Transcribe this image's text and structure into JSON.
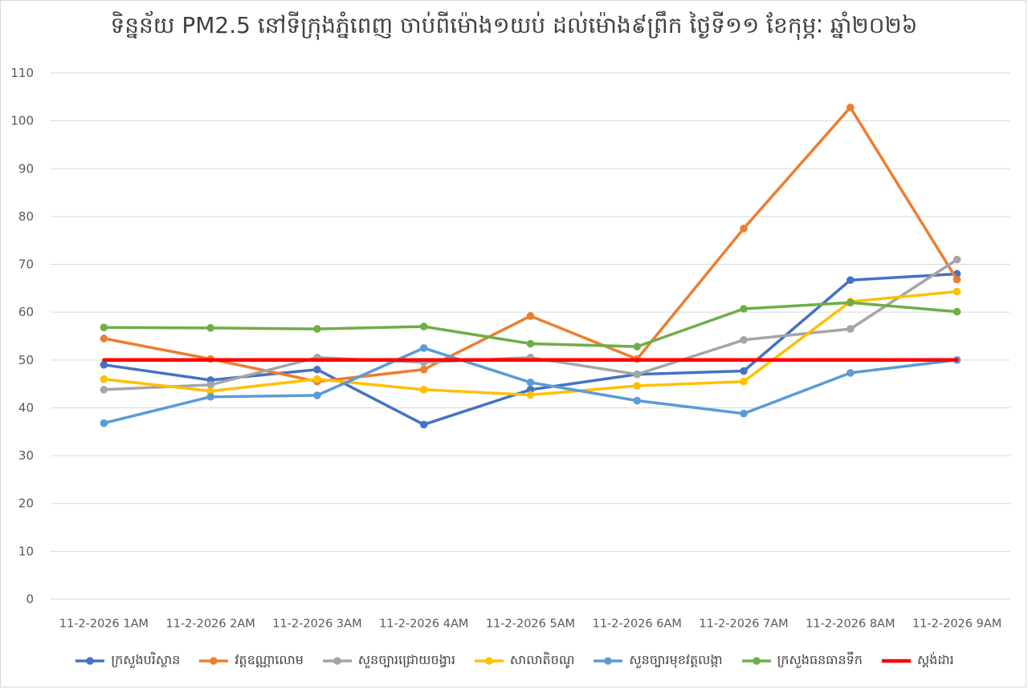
{
  "chart_data": {
    "type": "line",
    "title": "ទិន្នន័យ PM2.5 នៅទីក្រុងភ្នំពេញ ចាប់ពីម៉ោង១យប់ ដល់ម៉ោង៩ព្រឹក ថ្ងៃទី១១ ខែកុម្ភៈ ឆ្នាំ២០២៦",
    "xlabel": "",
    "ylabel": "",
    "ylim": [
      0,
      110
    ],
    "yticks": [
      "0",
      "10",
      "20",
      "30",
      "40",
      "50",
      "60",
      "70",
      "80",
      "90",
      "100",
      "110"
    ],
    "categories": [
      "11-2-2026 1AM",
      "11-2-2026 2AM",
      "11-2-2026 3AM",
      "11-2-2026 4AM",
      "11-2-2026 5AM",
      "11-2-2026 6AM",
      "11-2-2026 7AM",
      "11-2-2026 8AM",
      "11-2-2026 9AM"
    ],
    "grid": true,
    "legend_position": "bottom",
    "series": [
      {
        "name": "ក្រសួងបរិស្ថាន",
        "color": "#4472c4",
        "markers": true,
        "values": [
          49,
          45.8,
          48,
          36.5,
          43.8,
          47,
          47.7,
          66.7,
          68
        ]
      },
      {
        "name": "វត្តឧណ្ណាលោម",
        "color": "#ed7d31",
        "markers": true,
        "values": [
          54.5,
          50.2,
          45.5,
          48,
          59.2,
          50.2,
          77.5,
          102.8,
          66.8
        ]
      },
      {
        "name": "សួនច្បារជ្រោយចង្វារ",
        "color": "#a5a5a5",
        "markers": true,
        "values": [
          43.8,
          44.8,
          50.5,
          49.5,
          50.5,
          47,
          54.2,
          56.5,
          71
        ]
      },
      {
        "name": "សាលាតិចណូ",
        "color": "#ffc000",
        "markers": true,
        "values": [
          46,
          43.5,
          46,
          43.8,
          42.7,
          44.6,
          45.5,
          62.2,
          64.3
        ]
      },
      {
        "name": "សួនច្បារមុខវត្តលង្កា",
        "color": "#5b9bd5",
        "markers": true,
        "values": [
          36.8,
          42.3,
          42.6,
          52.5,
          45.3,
          41.5,
          38.8,
          47.3,
          50
        ]
      },
      {
        "name": "ក្រសួងធនធានទឹក",
        "color": "#70ad47",
        "markers": true,
        "values": [
          56.8,
          56.7,
          56.5,
          57,
          53.4,
          52.8,
          60.7,
          62,
          60.1
        ]
      },
      {
        "name": "ស្តង់ដារ",
        "color": "#ff0000",
        "markers": false,
        "values": [
          50,
          50,
          50,
          50,
          50,
          50,
          50,
          50,
          50
        ]
      }
    ]
  }
}
